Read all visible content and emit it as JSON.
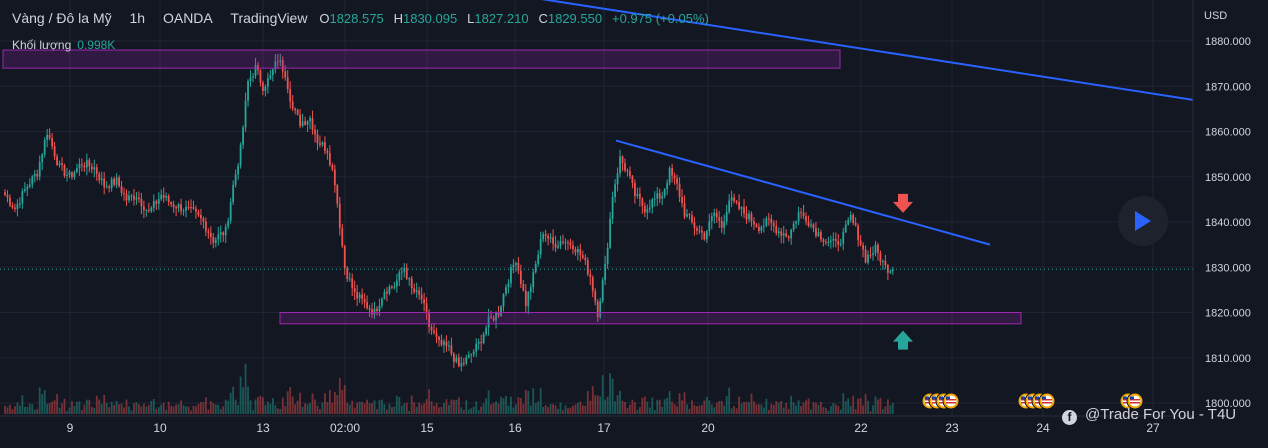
{
  "legend": {
    "symbol": "Vàng / Đô la Mỹ",
    "interval": "1h",
    "broker": "OANDA",
    "platform": "TradingView",
    "o_label": "O",
    "o_value": "1828.575",
    "h_label": "H",
    "h_value": "1830.095",
    "l_label": "L",
    "l_value": "1827.210",
    "c_label": "C",
    "c_value": "1829.550",
    "change": "+0.975 (+0.05%)",
    "volume_label": "Khối lượng",
    "volume_value": "0.998K"
  },
  "currency": "USD",
  "watermark": "@Trade For You - T4U",
  "colors": {
    "background": "#131722",
    "up": "#26a69a",
    "down": "#ef5350",
    "trendline": "#2962ff",
    "zone": "#9c27b0",
    "price_tag": "#26a69a"
  },
  "icons": {
    "down_arrow": "red-down-arrow-icon",
    "up_arrow": "green-up-arrow-icon",
    "play": "play-icon",
    "facebook": "facebook-icon",
    "events": "us-flag-event-icon"
  },
  "chart_data": {
    "type": "candlestick",
    "ylim": [
      1798,
      1886
    ],
    "y_ticks": [
      "1880.000",
      "1870.000",
      "1860.000",
      "1850.000",
      "1840.000",
      "1830.000",
      "1820.000",
      "1810.000",
      "1800.000"
    ],
    "x_ticks": [
      "9",
      "10",
      "13",
      "02:00",
      "15",
      "16",
      "17",
      "20",
      "22",
      "23",
      "24",
      "27"
    ],
    "last_price": "1829.550",
    "zones": [
      {
        "from": 1874,
        "to": 1878
      },
      {
        "from": 1817.5,
        "to": 1820
      }
    ],
    "trendlines": [
      {
        "start": {
          "x": "9",
          "y": 1890
        },
        "end": {
          "x": "27",
          "y": 1867
        }
      },
      {
        "start": {
          "x": "17",
          "y": 1858
        },
        "end": {
          "x": "23",
          "y": 1835
        }
      }
    ],
    "markers": [
      {
        "type": "arrow-down",
        "x": "22",
        "y": 1844
      },
      {
        "type": "arrow-up",
        "x": "22",
        "y": 1814
      }
    ],
    "waypoints": [
      [
        0,
        1846
      ],
      [
        4,
        1843
      ],
      [
        9,
        1848
      ],
      [
        13,
        1851
      ],
      [
        17,
        1860
      ],
      [
        22,
        1852
      ],
      [
        26,
        1850
      ],
      [
        31,
        1853
      ],
      [
        36,
        1852
      ],
      [
        40,
        1848
      ],
      [
        45,
        1849
      ],
      [
        49,
        1845
      ],
      [
        53,
        1846
      ],
      [
        58,
        1842
      ],
      [
        63,
        1846
      ],
      [
        67,
        1844
      ],
      [
        72,
        1843
      ],
      [
        76,
        1842
      ],
      [
        80,
        1840
      ],
      [
        84,
        1836
      ],
      [
        89,
        1838
      ],
      [
        92,
        1848
      ],
      [
        95,
        1856
      ],
      [
        98,
        1871
      ],
      [
        101,
        1874
      ],
      [
        104,
        1870
      ],
      [
        107,
        1872
      ],
      [
        110,
        1876
      ],
      [
        113,
        1873
      ],
      [
        116,
        1865
      ],
      [
        119,
        1862
      ],
      [
        123,
        1863
      ],
      [
        126,
        1858
      ],
      [
        130,
        1856
      ],
      [
        133,
        1849
      ],
      [
        137,
        1830
      ],
      [
        141,
        1824
      ],
      [
        145,
        1822
      ],
      [
        149,
        1820
      ],
      [
        153,
        1825
      ],
      [
        157,
        1826
      ],
      [
        161,
        1830
      ],
      [
        164,
        1825
      ],
      [
        168,
        1823
      ],
      [
        171,
        1817
      ],
      [
        175,
        1813
      ],
      [
        179,
        1812
      ],
      [
        183,
        1808
      ],
      [
        187,
        1810
      ],
      [
        191,
        1813
      ],
      [
        195,
        1818
      ],
      [
        199,
        1820
      ],
      [
        202,
        1826
      ],
      [
        206,
        1832
      ],
      [
        210,
        1822
      ],
      [
        213,
        1828
      ],
      [
        217,
        1838
      ],
      [
        221,
        1835
      ],
      [
        225,
        1836
      ],
      [
        229,
        1835
      ],
      [
        233,
        1832
      ],
      [
        236,
        1828
      ],
      [
        239,
        1820
      ],
      [
        242,
        1830
      ],
      [
        245,
        1846
      ],
      [
        248,
        1854
      ],
      [
        251,
        1851
      ],
      [
        254,
        1846
      ],
      [
        258,
        1843
      ],
      [
        262,
        1845
      ],
      [
        265,
        1846
      ],
      [
        268,
        1851
      ],
      [
        271,
        1848
      ],
      [
        274,
        1842
      ],
      [
        278,
        1839
      ],
      [
        282,
        1837
      ],
      [
        286,
        1842
      ],
      [
        289,
        1839
      ],
      [
        292,
        1845
      ],
      [
        296,
        1843
      ],
      [
        300,
        1841
      ],
      [
        304,
        1839
      ],
      [
        308,
        1840
      ],
      [
        312,
        1838
      ],
      [
        316,
        1837
      ],
      [
        320,
        1842
      ],
      [
        323,
        1841
      ],
      [
        327,
        1838
      ],
      [
        331,
        1836
      ],
      [
        335,
        1835
      ],
      [
        338,
        1837
      ],
      [
        341,
        1841
      ],
      [
        344,
        1837
      ],
      [
        347,
        1832
      ],
      [
        351,
        1834
      ],
      [
        355,
        1830
      ],
      [
        358,
        1829.55
      ]
    ]
  }
}
